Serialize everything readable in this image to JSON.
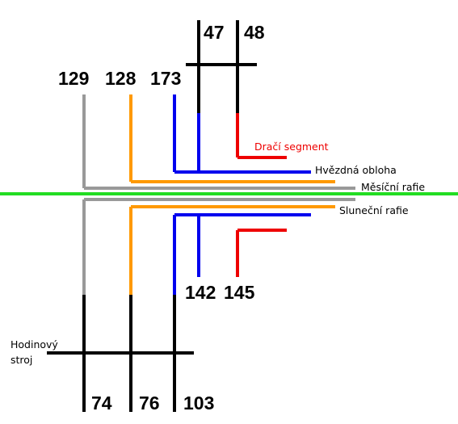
{
  "numbers": [
    "47",
    "48",
    "129",
    "128",
    "173",
    "142",
    "145",
    "74",
    "76",
    "103"
  ],
  "names": [
    "Dračí segment",
    "Hvězdná obloha",
    "Měsíční rafie",
    "Sluneční rafie"
  ],
  "clockwork": [
    "Hodinový",
    "stroj"
  ]
}
